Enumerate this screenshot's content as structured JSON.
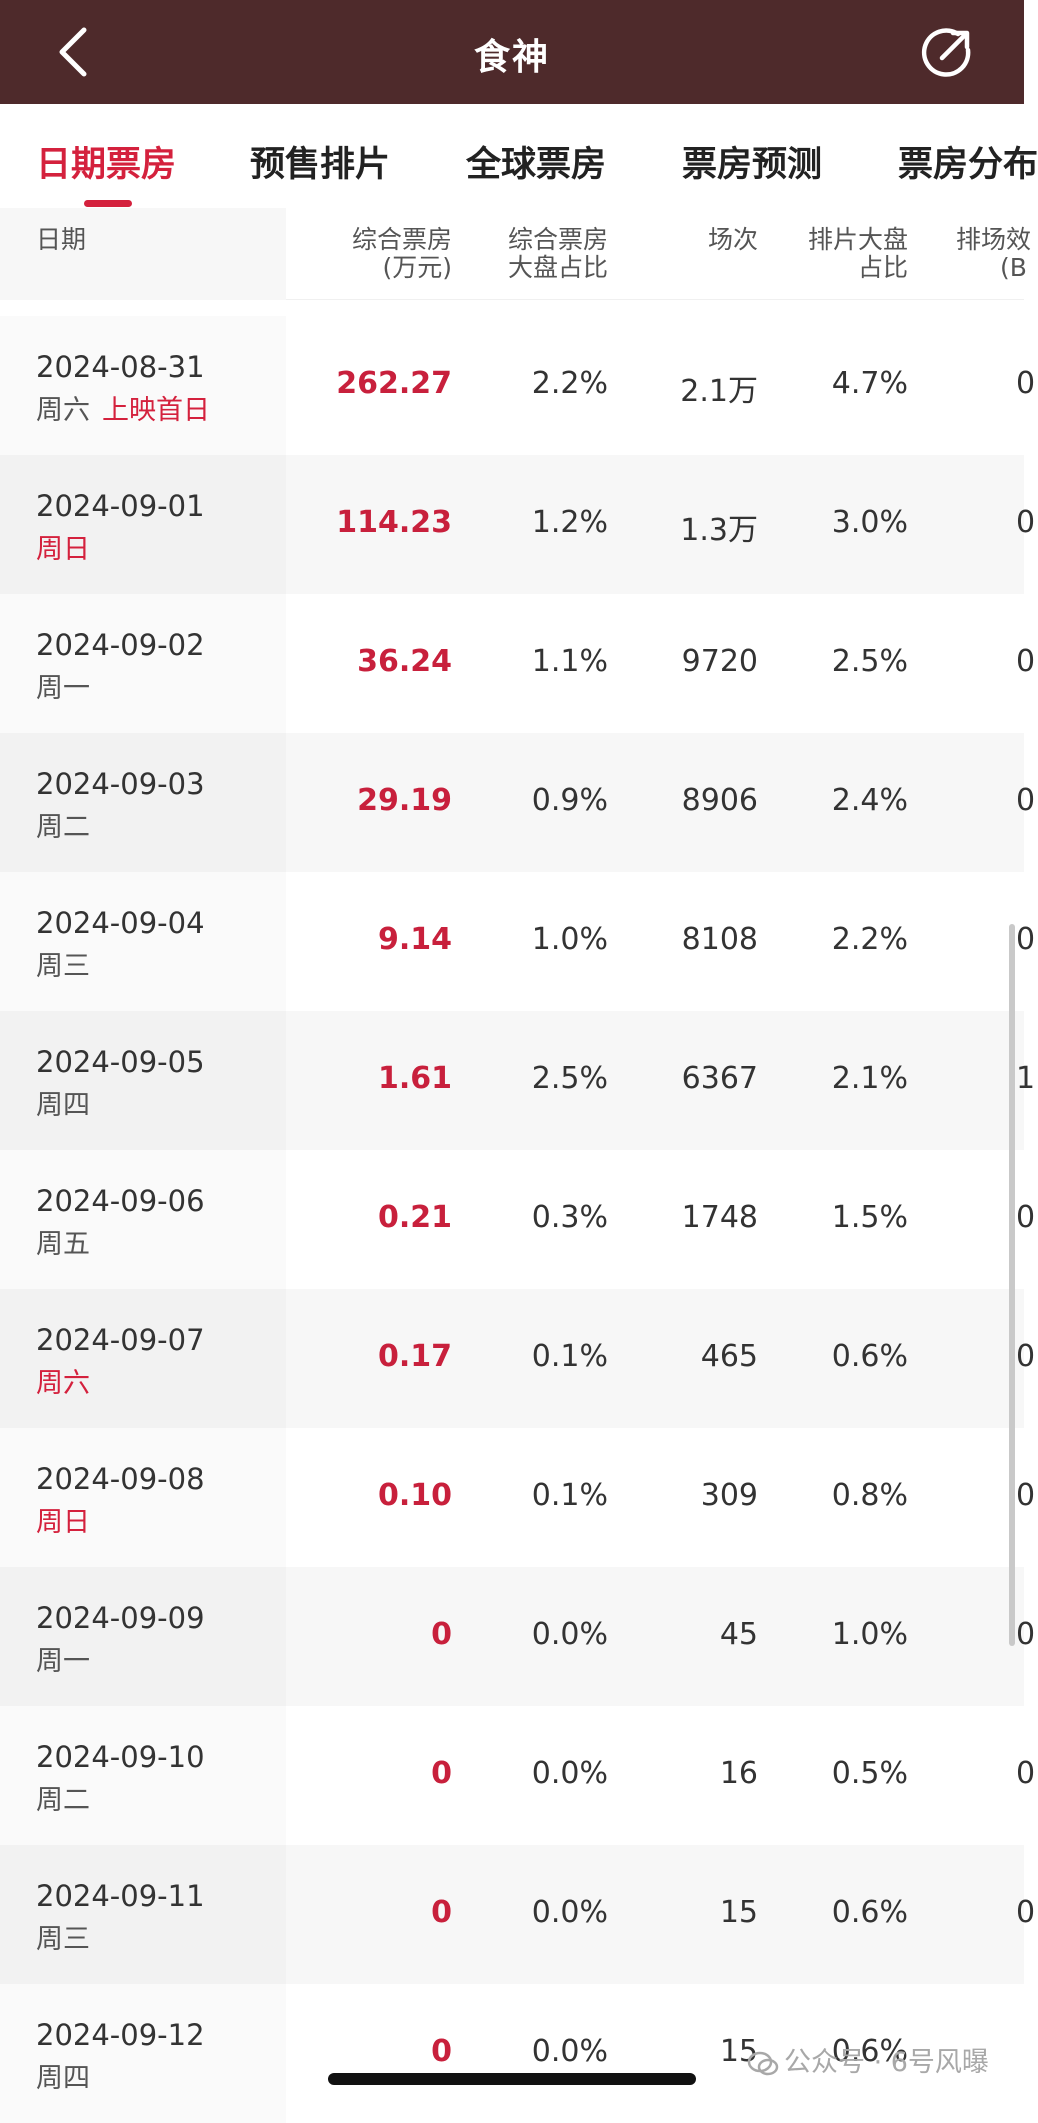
{
  "header": {
    "title": "食神",
    "back_icon": "chevron-left-icon",
    "share_icon": "share-icon"
  },
  "tabs": [
    {
      "label": "日期票房",
      "active": true
    },
    {
      "label": "预售排片",
      "active": false
    },
    {
      "label": "全球票房",
      "active": false
    },
    {
      "label": "票房预测",
      "active": false
    },
    {
      "label": "票房分布",
      "active": false
    }
  ],
  "columns": {
    "date": "日期",
    "boxoffice": {
      "line1": "综合票房",
      "line2": "(万元)"
    },
    "share": {
      "line1": "综合票房",
      "line2": "大盘占比"
    },
    "shows": "场次",
    "show_share": {
      "line1": "排片大盘",
      "line2": "占比"
    },
    "efficiency": {
      "line1": "排场效",
      "line2": "(B"
    }
  },
  "rows": [
    {
      "date": "2024-08-31",
      "weekday": "周六",
      "weekday_red": false,
      "tag": "上映首日",
      "boxoffice": "262.27",
      "share": "2.2%",
      "shows": "2.1万",
      "show_share": "4.7%",
      "efficiency": "0"
    },
    {
      "date": "2024-09-01",
      "weekday": "周日",
      "weekday_red": true,
      "tag": "",
      "boxoffice": "114.23",
      "share": "1.2%",
      "shows": "1.3万",
      "show_share": "3.0%",
      "efficiency": "0"
    },
    {
      "date": "2024-09-02",
      "weekday": "周一",
      "weekday_red": false,
      "tag": "",
      "boxoffice": "36.24",
      "share": "1.1%",
      "shows": "9720",
      "show_share": "2.5%",
      "efficiency": "0"
    },
    {
      "date": "2024-09-03",
      "weekday": "周二",
      "weekday_red": false,
      "tag": "",
      "boxoffice": "29.19",
      "share": "0.9%",
      "shows": "8906",
      "show_share": "2.4%",
      "efficiency": "0"
    },
    {
      "date": "2024-09-04",
      "weekday": "周三",
      "weekday_red": false,
      "tag": "",
      "boxoffice": "9.14",
      "share": "1.0%",
      "shows": "8108",
      "show_share": "2.2%",
      "efficiency": "0"
    },
    {
      "date": "2024-09-05",
      "weekday": "周四",
      "weekday_red": false,
      "tag": "",
      "boxoffice": "1.61",
      "share": "2.5%",
      "shows": "6367",
      "show_share": "2.1%",
      "efficiency": "1"
    },
    {
      "date": "2024-09-06",
      "weekday": "周五",
      "weekday_red": false,
      "tag": "",
      "boxoffice": "0.21",
      "share": "0.3%",
      "shows": "1748",
      "show_share": "1.5%",
      "efficiency": "0"
    },
    {
      "date": "2024-09-07",
      "weekday": "周六",
      "weekday_red": true,
      "tag": "",
      "boxoffice": "0.17",
      "share": "0.1%",
      "shows": "465",
      "show_share": "0.6%",
      "efficiency": "0"
    },
    {
      "date": "2024-09-08",
      "weekday": "周日",
      "weekday_red": true,
      "tag": "",
      "boxoffice": "0.10",
      "share": "0.1%",
      "shows": "309",
      "show_share": "0.8%",
      "efficiency": "0"
    },
    {
      "date": "2024-09-09",
      "weekday": "周一",
      "weekday_red": false,
      "tag": "",
      "boxoffice": "0",
      "share": "0.0%",
      "shows": "45",
      "show_share": "1.0%",
      "efficiency": "0"
    },
    {
      "date": "2024-09-10",
      "weekday": "周二",
      "weekday_red": false,
      "tag": "",
      "boxoffice": "0",
      "share": "0.0%",
      "shows": "16",
      "show_share": "0.5%",
      "efficiency": "0"
    },
    {
      "date": "2024-09-11",
      "weekday": "周三",
      "weekday_red": false,
      "tag": "",
      "boxoffice": "0",
      "share": "0.0%",
      "shows": "15",
      "show_share": "0.6%",
      "efficiency": "0"
    },
    {
      "date": "2024-09-12",
      "weekday": "周四",
      "weekday_red": false,
      "tag": "",
      "boxoffice": "0",
      "share": "0.0%",
      "shows": "15",
      "show_share": "0.6%",
      "efficiency": ""
    }
  ],
  "watermark": "公众号 · 6号风曝",
  "colors": {
    "header_bg": "#4e2a2b",
    "accent": "#d4213d"
  }
}
